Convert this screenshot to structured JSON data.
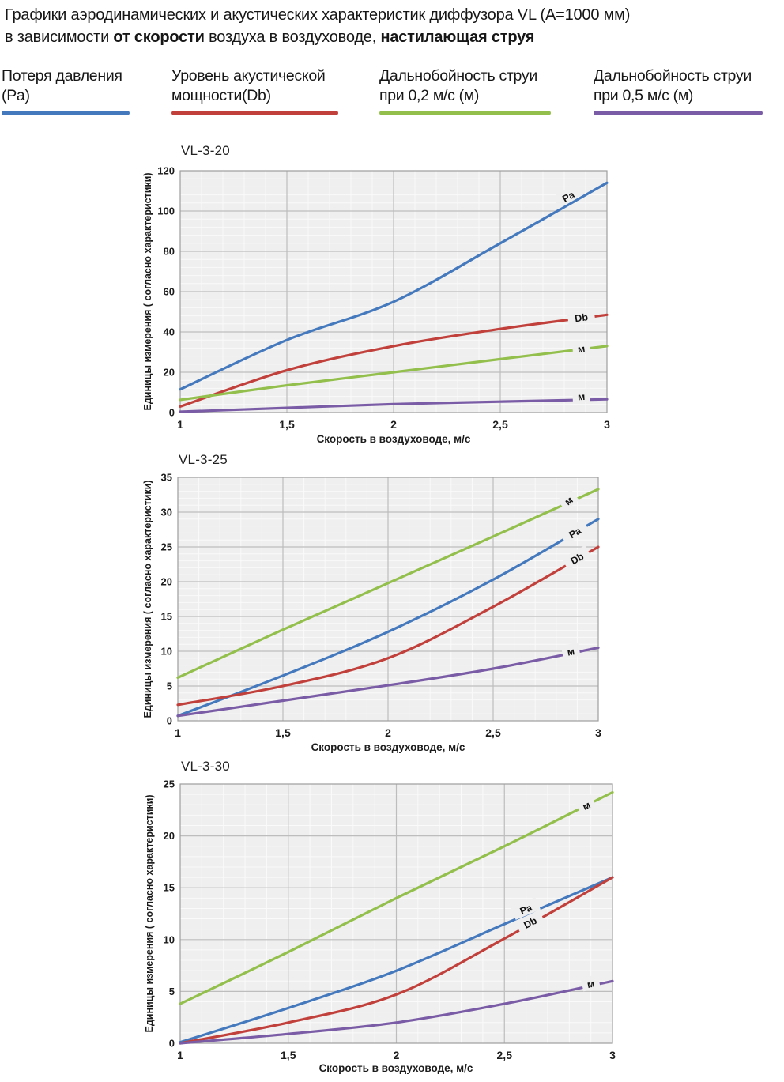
{
  "header": {
    "line1": "Графики аэродинамических и акустических характеристик  диффузора VL (А=1000 мм)",
    "line2_parts": [
      {
        "text": "в зависимости ",
        "bold": false
      },
      {
        "text": "от скорости",
        "bold": true
      },
      {
        "text": " воздуха в воздуховоде, ",
        "bold": false
      },
      {
        "text": "настилающая струя",
        "bold": true
      }
    ]
  },
  "legend": {
    "items": [
      {
        "line1": "Потеря давления",
        "line2": "(Pa)",
        "color": "#4579bd"
      },
      {
        "line1": "Уровень акустической",
        "line2": "мощности(Db)",
        "color": "#c1403b"
      },
      {
        "line1": "Дальнобойность струи",
        "line2": "при 0,2 м/с (м)",
        "color": "#93bf4c"
      },
      {
        "line1": "Дальнобойность струи",
        "line2": "при 0,5 м/с (м)",
        "color": "#7a5ca6"
      }
    ]
  },
  "colors": {
    "plot_bg": "#efefef",
    "grid_minor": "#fafafa",
    "grid_major": "#bdbdbd",
    "plot_border": "#9e9e9e",
    "tick_text": "#1c1c1c"
  },
  "chart_data": [
    {
      "type": "line",
      "title": "VL-3-20",
      "xlabel": "Скорость в воздуховоде, м/с",
      "ylabel": "Единицы измерения ( согласно характеристики)",
      "x": [
        1,
        1.5,
        2,
        2.5,
        3
      ],
      "xlim": [
        1,
        3
      ],
      "ylim": [
        0,
        120
      ],
      "x_major": 0.5,
      "x_minor": 0.1,
      "y_major": 20,
      "y_minor": 4,
      "x_tick_labels": [
        "1",
        "1,5",
        "2",
        "2,5",
        "3"
      ],
      "y_tick_labels": [
        "0",
        "20",
        "40",
        "60",
        "80",
        "100",
        "120"
      ],
      "grid": true,
      "legend_position": "none",
      "series": [
        {
          "id": "pa",
          "name": "Потеря давления (Pa)",
          "label": "Pa",
          "color": "#4579bd",
          "values": [
            11.5,
            36,
            55,
            84,
            114
          ],
          "label_at": {
            "x": 2.82,
            "y": 107,
            "rot": -30
          }
        },
        {
          "id": "db",
          "name": "Уровень акустической мощности(Db)",
          "label": "Db",
          "color": "#c1403b",
          "values": [
            3,
            21,
            33,
            41.5,
            48.5
          ],
          "label_at": {
            "x": 2.88,
            "y": 47,
            "rot": -8
          }
        },
        {
          "id": "m02",
          "name": "Дальнобойность струи при 0,2 м/с (м)",
          "label": "м",
          "color": "#93bf4c",
          "values": [
            6.3,
            13.5,
            20,
            26.5,
            33
          ],
          "label_at": {
            "x": 2.88,
            "y": 31.5,
            "rot": -7
          }
        },
        {
          "id": "m05",
          "name": "Дальнобойность струи при 0,5 м/с (м)",
          "label": "м",
          "color": "#7a5ca6",
          "values": [
            0.4,
            2.3,
            4.2,
            5.4,
            6.6
          ],
          "label_at": {
            "x": 2.88,
            "y": 7.8,
            "rot": -3
          }
        }
      ]
    },
    {
      "type": "line",
      "title": "VL-3-25",
      "xlabel": "Скорость в воздуховоде, м/с",
      "ylabel": "Единицы измерения ( согласно характеристики)",
      "x": [
        1,
        1.5,
        2,
        2.5,
        3
      ],
      "xlim": [
        1,
        3
      ],
      "ylim": [
        0,
        35
      ],
      "x_major": 0.5,
      "x_minor": 0.1,
      "y_major": 5,
      "y_minor": 1,
      "x_tick_labels": [
        "1",
        "1,5",
        "2",
        "2,5",
        "3"
      ],
      "y_tick_labels": [
        "0",
        "5",
        "10",
        "15",
        "20",
        "25",
        "30",
        "35"
      ],
      "grid": true,
      "legend_position": "none",
      "series": [
        {
          "id": "m02",
          "name": "Дальнобойность струи при 0,2 м/с (м)",
          "label": "м",
          "color": "#93bf4c",
          "values": [
            6.2,
            13.1,
            19.8,
            26.5,
            33.3
          ],
          "label_at": {
            "x": 2.86,
            "y": 31.6,
            "rot": -38
          }
        },
        {
          "id": "pa",
          "name": "Потеря давления (Pa)",
          "label": "Pa",
          "color": "#4579bd",
          "values": [
            0.7,
            6.5,
            12.8,
            20.3,
            29
          ],
          "label_at": {
            "x": 2.89,
            "y": 27,
            "rot": -30
          }
        },
        {
          "id": "db",
          "name": "Уровень акустической мощности(Db)",
          "label": "Db",
          "color": "#c1403b",
          "values": [
            2.3,
            5,
            9,
            16.4,
            25
          ],
          "label_at": {
            "x": 2.9,
            "y": 23.3,
            "rot": -30
          }
        },
        {
          "id": "m05",
          "name": "Дальнобойность струи при 0,5 м/с (м)",
          "label": "м",
          "color": "#7a5ca6",
          "values": [
            0.7,
            2.9,
            5.1,
            7.5,
            10.5
          ],
          "label_at": {
            "x": 2.87,
            "y": 9.9,
            "rot": -11
          }
        }
      ]
    },
    {
      "type": "line",
      "title": "VL-3-30",
      "xlabel": "Скорость в воздуховоде, м/с",
      "ylabel": "Единицы измерения ( согласно характеристики)",
      "x": [
        1,
        1.5,
        2,
        2.5,
        3
      ],
      "xlim": [
        1,
        3
      ],
      "ylim": [
        0,
        25
      ],
      "x_major": 0.5,
      "x_minor": 0.1,
      "y_major": 5,
      "y_minor": 1,
      "x_tick_labels": [
        "1",
        "1,5",
        "2",
        "2,5",
        "3"
      ],
      "y_tick_labels": [
        "0",
        "5",
        "10",
        "15",
        "20",
        "25"
      ],
      "grid": true,
      "legend_position": "none",
      "series": [
        {
          "id": "m02",
          "name": "Дальнобойность струи при 0,2 м/с (м)",
          "label": "м",
          "color": "#93bf4c",
          "values": [
            3.8,
            8.8,
            14,
            19,
            24.2
          ],
          "label_at": {
            "x": 2.88,
            "y": 22.9,
            "rot": -26
          }
        },
        {
          "id": "pa",
          "name": "Потеря давления (Pa)",
          "label": "Pa",
          "color": "#4579bd",
          "values": [
            0.1,
            3.4,
            7,
            11.5,
            16
          ],
          "label_at": {
            "x": 2.6,
            "y": 12.9,
            "rot": -23
          }
        },
        {
          "id": "db",
          "name": "Уровень акустической мощности(Db)",
          "label": "Db",
          "color": "#c1403b",
          "values": [
            0,
            2,
            4.7,
            10.1,
            16
          ],
          "label_at": {
            "x": 2.62,
            "y": 11.6,
            "rot": -27
          }
        },
        {
          "id": "m05",
          "name": "Дальнобойность струи при 0,5 м/с (м)",
          "label": "м",
          "color": "#7a5ca6",
          "values": [
            0,
            0.9,
            2,
            3.8,
            6
          ],
          "label_at": {
            "x": 2.9,
            "y": 5.7,
            "rot": -12
          }
        }
      ]
    }
  ]
}
